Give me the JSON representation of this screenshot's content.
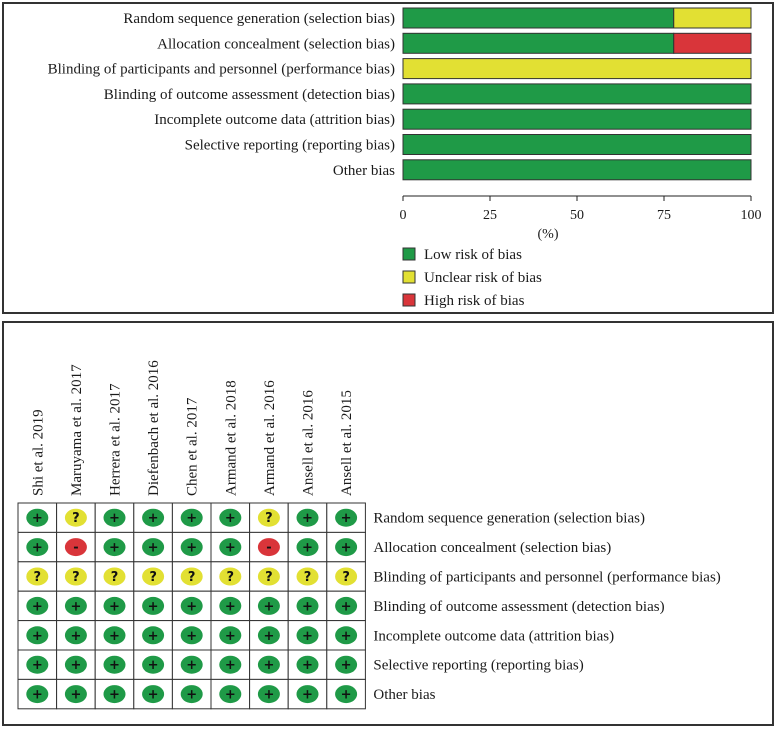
{
  "chart_data": [
    {
      "type": "bar",
      "orientation": "horizontal",
      "stacked": true,
      "categories": [
        "Random sequence generation (selection bias)",
        "Allocation concealment (selection bias)",
        "Blinding of participants and personnel (performance bias)",
        "Blinding of outcome assessment (detection bias)",
        "Incomplete outcome data (attrition bias)",
        "Selective reporting (reporting bias)",
        "Other bias"
      ],
      "series": [
        {
          "name": "Low risk of bias",
          "color": "#1f9a47",
          "values": [
            77.8,
            77.8,
            0,
            100,
            100,
            100,
            100
          ]
        },
        {
          "name": "Unclear risk of bias",
          "color": "#e2e033",
          "values": [
            22.2,
            0,
            100,
            0,
            0,
            0,
            0
          ]
        },
        {
          "name": "High risk of bias",
          "color": "#d9353a",
          "values": [
            0,
            22.2,
            0,
            0,
            0,
            0,
            0
          ]
        }
      ],
      "xticks": [
        "0",
        "25",
        "50",
        "75",
        "100"
      ],
      "xlim": [
        0,
        100
      ],
      "xlabel": "(%)",
      "legend_position": "bottom"
    },
    {
      "type": "table",
      "columns": [
        "Shi et al. 2019",
        "Maruyama et al. 2017",
        "Herrera et al. 2017",
        "Diefenbach et al. 2016",
        "Chen et al. 2017",
        "Armand et al. 2018",
        "Armand et al. 2016",
        "Ansell et al. 2016",
        "Ansell et al. 2015"
      ],
      "rows": [
        "Random sequence generation (selection bias)",
        "Allocation concealment (selection bias)",
        "Blinding of participants and personnel (performance bias)",
        "Blinding of outcome assessment (detection bias)",
        "Incomplete outcome data (attrition bias)",
        "Selective reporting (reporting bias)",
        "Other bias"
      ],
      "cells": [
        [
          "+",
          "?",
          "+",
          "+",
          "+",
          "+",
          "?",
          "+",
          "+"
        ],
        [
          "+",
          "-",
          "+",
          "+",
          "+",
          "+",
          "-",
          "+",
          "+"
        ],
        [
          "?",
          "?",
          "?",
          "?",
          "?",
          "?",
          "?",
          "?",
          "?"
        ],
        [
          "+",
          "+",
          "+",
          "+",
          "+",
          "+",
          "+",
          "+",
          "+"
        ],
        [
          "+",
          "+",
          "+",
          "+",
          "+",
          "+",
          "+",
          "+",
          "+"
        ],
        [
          "+",
          "+",
          "+",
          "+",
          "+",
          "+",
          "+",
          "+",
          "+"
        ],
        [
          "+",
          "+",
          "+",
          "+",
          "+",
          "+",
          "+",
          "+",
          "+"
        ]
      ],
      "symbol_colors": {
        "+": "#1f9a47",
        "?": "#e2e033",
        "-": "#d9353a"
      }
    }
  ]
}
